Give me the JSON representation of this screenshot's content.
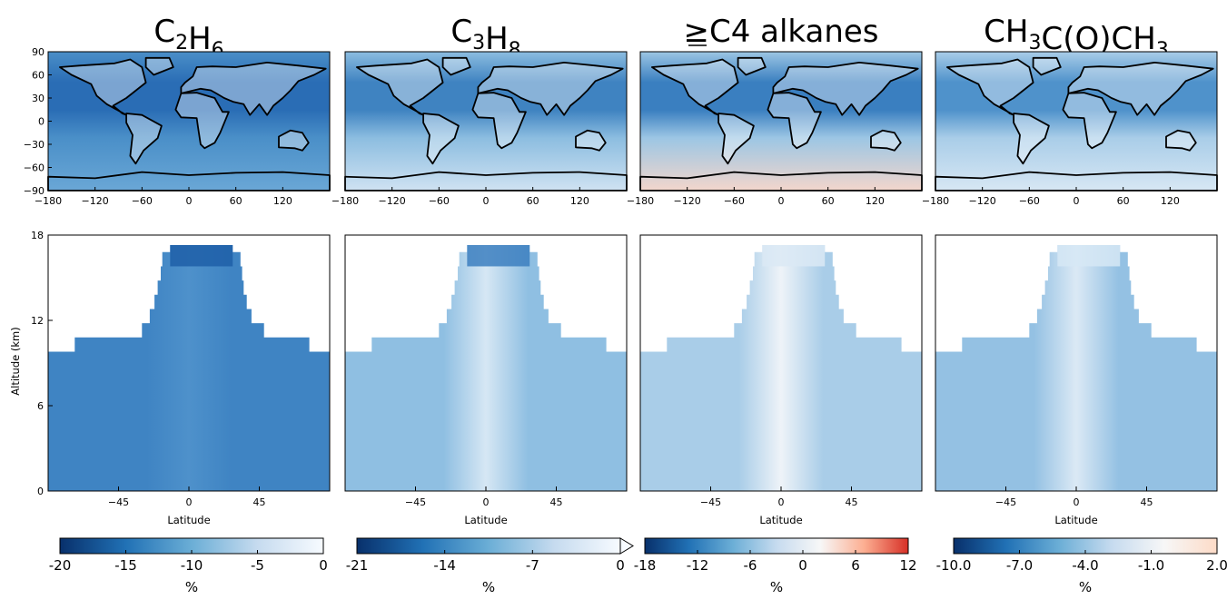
{
  "chart_data": {
    "type": "heatmap",
    "description_units": "percent change",
    "titles": [
      {
        "main": "C",
        "sub1": "2",
        "mid": "H",
        "sub2": "6",
        "tail": "",
        "sub3": "",
        "end": ""
      },
      {
        "main": "C",
        "sub1": "3",
        "mid": "H",
        "sub2": "8",
        "tail": "",
        "sub3": "",
        "end": ""
      },
      {
        "main": "≥C4 alkanes",
        "sub1": "",
        "mid": "",
        "sub2": "",
        "tail": "",
        "sub3": "",
        "end": ""
      },
      {
        "main": "CH",
        "sub1": "3",
        "mid": "C(O)CH",
        "sub2": "3",
        "tail": "",
        "sub3": "",
        "end": ""
      }
    ],
    "map": {
      "xticks": [
        "−180",
        "−120",
        "−60",
        "0",
        "60",
        "120"
      ],
      "xtick_values": [
        -180,
        -120,
        -60,
        0,
        60,
        120
      ],
      "xlim": [
        -180,
        180
      ],
      "yticks": [
        "90",
        "60",
        "30",
        "0",
        "−30",
        "−60",
        "−90"
      ],
      "ytick_values": [
        90,
        60,
        30,
        0,
        -30,
        -60,
        -90
      ],
      "ylim": [
        -90,
        90
      ]
    },
    "zonal": {
      "xlabel": "Latitude",
      "ylabel": "Altitude (km)",
      "xticks": [
        "−45",
        "0",
        "45"
      ],
      "xtick_values": [
        -45,
        0,
        45
      ],
      "xlim": [
        -90,
        90
      ],
      "yticks": [
        "18",
        "12",
        "6",
        "0"
      ],
      "ytick_values": [
        18,
        12,
        6,
        0
      ],
      "ylim": [
        0,
        18
      ]
    },
    "colorbars": [
      {
        "label": "%",
        "ticks": [
          "-20",
          "-15",
          "-10",
          "-5",
          "0"
        ],
        "range": [
          -20,
          0
        ],
        "extend": "none",
        "colors": [
          "#08306b",
          "#2171b5",
          "#6baed6",
          "#c6dbef",
          "#f7fbff"
        ]
      },
      {
        "label": "%",
        "ticks": [
          "-21",
          "-14",
          "-7",
          "0"
        ],
        "range": [
          -21,
          0
        ],
        "extend": "max",
        "colors": [
          "#08306b",
          "#2171b5",
          "#6baed6",
          "#c6dbef",
          "#f7fbff"
        ]
      },
      {
        "label": "%",
        "ticks": [
          "-18",
          "-12",
          "-6",
          "0",
          "6",
          "12"
        ],
        "range": [
          -18,
          12
        ],
        "extend": "none",
        "colors": [
          "#08306b",
          "#2171b5",
          "#6baed6",
          "#c6dbef",
          "#f7f7f7",
          "#fcae91",
          "#d73027"
        ]
      },
      {
        "label": "%",
        "ticks": [
          "-10.0",
          "-7.0",
          "-4.0",
          "-1.0",
          "2.0"
        ],
        "range": [
          -10,
          2
        ],
        "extend": "none",
        "colors": [
          "#08306b",
          "#2171b5",
          "#6baed6",
          "#c6dbef",
          "#f7f7f7",
          "#fddbc7"
        ]
      }
    ],
    "panel_colors": {
      "map_base": [
        "#4a8fc8",
        "#8cbde0",
        "#9cc6e4",
        "#a9cde8"
      ],
      "map_tropic": [
        "#2a6db5",
        "#3f83c1",
        "#3a7fc0",
        "#4f92cb"
      ],
      "map_south": [
        "#6aa7d6",
        "#cfe2f2",
        "#f3d6cc",
        "#d7e7f4"
      ],
      "zonal_base": [
        "#3f84c3",
        "#8fbfe2",
        "#a9cde8",
        "#94c1e3"
      ],
      "zonal_core": [
        "#4e91cb",
        "#d6e7f4",
        "#eef3f8",
        "#dbe9f5"
      ],
      "zonal_top": [
        "#1f5fa8",
        "#3c7fc0",
        "#dbe9f5",
        "#d6e7f4"
      ]
    }
  }
}
